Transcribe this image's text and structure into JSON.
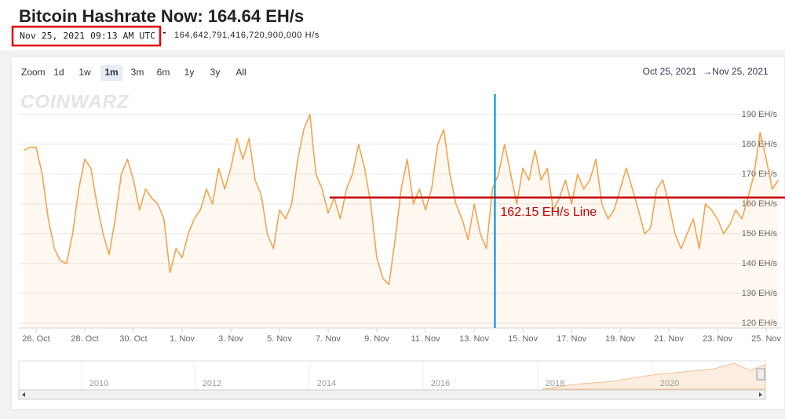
{
  "header": {
    "title": "Bitcoin Hashrate Now: 164.64 EH/s",
    "timestamp": "Nov 25, 2021 09:13 AM UTC",
    "separator": "-",
    "exact": "164,642,791,416,720,900,000 H/s"
  },
  "toolbar": {
    "zoom_label": "Zoom",
    "buttons": [
      "1d",
      "1w",
      "1m",
      "3m",
      "6m",
      "1y",
      "3y",
      "All"
    ],
    "selected": "1m",
    "range_from": "Oct 25, 2021",
    "range_arrow": "→",
    "range_to": "Nov 25, 2021"
  },
  "logo": "COINWARZ",
  "navigator": {
    "years": [
      "2010",
      "2012",
      "2014",
      "2016",
      "2018",
      "2020"
    ]
  },
  "chart_data": {
    "type": "line",
    "series": [
      {
        "name": "Hashrate",
        "color": "#f0a550",
        "x": [
          0.5,
          0.75,
          1,
          1.25,
          1.5,
          1.75,
          2,
          2.25,
          2.5,
          2.75,
          3,
          3.25,
          3.5,
          3.75,
          4,
          4.25,
          4.5,
          4.75,
          5,
          5.25,
          5.5,
          5.75,
          6,
          6.25,
          6.5,
          6.75,
          7,
          7.25,
          7.5,
          7.75,
          8,
          8.25,
          8.5,
          8.75,
          9,
          9.25,
          9.5,
          9.75,
          10,
          10.25,
          10.5,
          10.75,
          11,
          11.25,
          11.5,
          11.75,
          12,
          12.25,
          12.5,
          12.75,
          13,
          13.25,
          13.5,
          13.75,
          14,
          14.25,
          14.5,
          14.75,
          15,
          15.25,
          15.5,
          15.75,
          16,
          16.25,
          16.5,
          16.75,
          17,
          17.25,
          17.5,
          17.75,
          18,
          18.25,
          18.5,
          18.75,
          19,
          19.25,
          19.5,
          19.75,
          20,
          20.25,
          20.5,
          20.75,
          21,
          21.25,
          21.5,
          21.75,
          22,
          22.25,
          22.5,
          22.75,
          23,
          23.25,
          23.5,
          23.75,
          24,
          24.25,
          24.5,
          24.75,
          25,
          25.25,
          25.5,
          25.75,
          26,
          26.25,
          26.5,
          26.75,
          27,
          27.25,
          27.5,
          27.75,
          28,
          28.25,
          28.5,
          28.75,
          29,
          29.25,
          29.5,
          29.75,
          30,
          30.25,
          30.5,
          30.75,
          31,
          31.25,
          31.5
        ],
        "values": [
          178,
          179,
          179,
          170,
          155,
          145,
          141,
          140,
          150,
          165,
          175,
          172,
          160,
          150,
          143,
          155,
          170,
          175,
          168,
          158,
          165,
          162,
          160,
          155,
          137,
          145,
          142,
          150,
          155,
          158,
          165,
          160,
          172,
          165,
          172,
          182,
          175,
          182,
          168,
          163,
          150,
          145,
          158,
          155,
          160,
          175,
          185,
          190,
          170,
          165,
          157,
          162,
          155,
          165,
          170,
          180,
          172,
          160,
          142,
          135,
          133,
          148,
          165,
          175,
          160,
          165,
          158,
          165,
          180,
          185,
          170,
          160,
          155,
          148,
          160,
          150,
          145,
          165,
          170,
          180,
          170,
          160,
          172,
          168,
          178,
          168,
          172,
          158,
          162,
          168,
          160,
          170,
          165,
          168,
          175,
          160,
          155,
          158,
          165,
          172,
          165,
          158,
          150,
          152,
          165,
          168,
          160,
          150,
          145,
          150,
          155,
          145,
          160,
          158,
          155,
          150,
          153,
          158,
          155,
          162,
          170,
          184,
          175,
          165,
          168
        ]
      }
    ],
    "xlim": [
      0.29,
      31.61
    ],
    "xticks": [
      {
        "value": 1,
        "label": "26. Oct"
      },
      {
        "value": 3,
        "label": "28. Oct"
      },
      {
        "value": 5,
        "label": "30. Oct"
      },
      {
        "value": 7,
        "label": "1. Nov"
      },
      {
        "value": 9,
        "label": "3. Nov"
      },
      {
        "value": 11,
        "label": "5. Nov"
      },
      {
        "value": 13,
        "label": "7. Nov"
      },
      {
        "value": 15,
        "label": "9. Nov"
      },
      {
        "value": 17,
        "label": "11. Nov"
      },
      {
        "value": 19,
        "label": "13. Nov"
      },
      {
        "value": 21,
        "label": "15. Nov"
      },
      {
        "value": 23,
        "label": "17. Nov"
      },
      {
        "value": 25,
        "label": "19. Nov"
      },
      {
        "value": 27,
        "label": "21. Nov"
      },
      {
        "value": 29,
        "label": "23. Nov"
      },
      {
        "value": 31,
        "label": "25. Nov"
      }
    ],
    "ylim": [
      118.4,
      196.8
    ],
    "yticks": [
      {
        "value": 120,
        "label": "120 EH/s"
      },
      {
        "value": 130,
        "label": "130 EH/s"
      },
      {
        "value": 140,
        "label": "140 EH/s"
      },
      {
        "value": 150,
        "label": "150 EH/s"
      },
      {
        "value": 160,
        "label": "160 EH/s"
      },
      {
        "value": 170,
        "label": "170 EH/s"
      },
      {
        "value": 180,
        "label": "180 EH/s"
      },
      {
        "value": 190,
        "label": "190 EH/s"
      }
    ],
    "grid": true,
    "annotations": {
      "hline": {
        "y": 162.15,
        "x_from": 13.06,
        "label": "162.15 EH/s Line",
        "color": "#c00000"
      },
      "vline": {
        "x": 19.85,
        "color": "#1aa3e0"
      }
    }
  }
}
